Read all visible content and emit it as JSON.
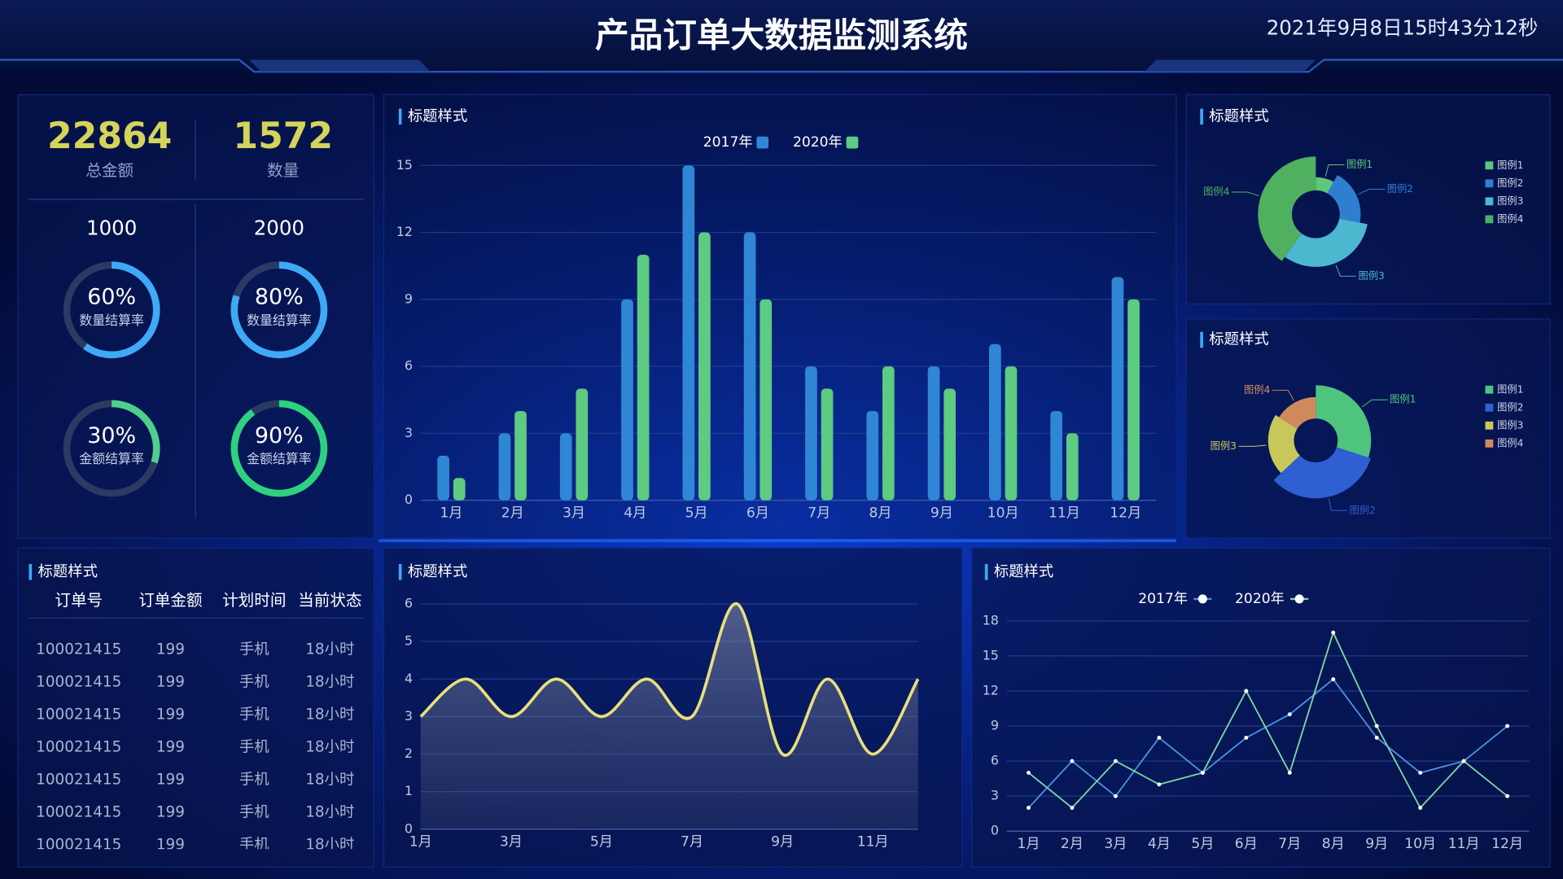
{
  "header": {
    "title": "产品订单大数据监测系统",
    "time": "2021年9月8日15时43分12秒"
  },
  "stats": [
    {
      "value": 22864,
      "label": "总金额"
    },
    {
      "value": 1572,
      "label": "数量"
    }
  ],
  "targets": [
    1000,
    2000
  ],
  "rings": {
    "range": [
      0,
      100
    ],
    "items": [
      {
        "value": 60,
        "value_label": "60%",
        "label": "数量结算率",
        "color": "#3fa9f5"
      },
      {
        "value": 80,
        "value_label": "80%",
        "label": "数量结算率",
        "color": "#3fa9f5"
      },
      {
        "value": 30,
        "value_label": "30%",
        "label": "金额结算率",
        "color": "#4fcf8c"
      },
      {
        "value": 90,
        "value_label": "90%",
        "label": "金额结算率",
        "color": "#2ed17f"
      }
    ]
  },
  "table": {
    "title": "标题样式",
    "columns": [
      "订单号",
      "订单金额",
      "计划时间",
      "当前状态"
    ],
    "rows": [
      [
        100021415,
        199,
        "手机",
        "18小时"
      ],
      [
        100021415,
        199,
        "手机",
        "18小时"
      ],
      [
        100021415,
        199,
        "手机",
        "18小时"
      ],
      [
        100021415,
        199,
        "手机",
        "18小时"
      ],
      [
        100021415,
        199,
        "手机",
        "18小时"
      ],
      [
        100021415,
        199,
        "手机",
        "18小时"
      ],
      [
        100021415,
        199,
        "手机",
        "18小时"
      ]
    ]
  },
  "chart_data": [
    {
      "type": "bar",
      "title": "标题样式",
      "categories": [
        "1月",
        "2月",
        "3月",
        "4月",
        "5月",
        "6月",
        "7月",
        "8月",
        "9月",
        "10月",
        "11月",
        "12月"
      ],
      "series": [
        {
          "name": "2017年",
          "color": "#2f86d4",
          "values": [
            2,
            3,
            3,
            9,
            15,
            12,
            6,
            4,
            6,
            7,
            4,
            10
          ]
        },
        {
          "name": "2020年",
          "color": "#5dcb80",
          "values": [
            1,
            4,
            5,
            11,
            12,
            9,
            5,
            6,
            5,
            6,
            3,
            9
          ]
        }
      ],
      "ylim": [
        0,
        15
      ],
      "yticks": [
        0,
        3,
        6,
        9,
        12,
        15
      ],
      "grid": true
    },
    {
      "type": "pie",
      "title": "标题样式",
      "rose": true,
      "categories": [
        "图例1",
        "图例2",
        "图例3",
        "图例4"
      ],
      "values": [
        8,
        20,
        32,
        40
      ],
      "colors": [
        "#5cc87a",
        "#2f7fd1",
        "#4cb8d0",
        "#4fb060"
      ]
    },
    {
      "type": "pie",
      "title": "标题样式",
      "rose": true,
      "categories": [
        "图例1",
        "图例2",
        "图例3",
        "图例4"
      ],
      "values": [
        30,
        33,
        21,
        16
      ],
      "colors": [
        "#4fc47e",
        "#2f5fd0",
        "#c8c75a",
        "#d08a5a"
      ]
    },
    {
      "type": "line",
      "title": "标题样式",
      "smooth": true,
      "area": true,
      "categories": [
        "1月",
        null,
        "3月",
        null,
        "5月",
        null,
        "7月",
        null,
        "9月",
        null,
        "11月",
        null
      ],
      "values": [
        3,
        4,
        3,
        4,
        3,
        4,
        3,
        6,
        2,
        4,
        2,
        4
      ],
      "color": "#e8df7a",
      "ylim": [
        0,
        6
      ],
      "yticks": [
        0,
        1,
        2,
        3,
        4,
        5,
        6
      ],
      "grid": true
    },
    {
      "type": "line",
      "title": "标题样式",
      "markers": true,
      "categories": [
        "1月",
        "2月",
        "3月",
        "4月",
        "5月",
        "6月",
        "7月",
        "8月",
        "9月",
        "10月",
        "11月",
        "12月"
      ],
      "series": [
        {
          "name": "2017年",
          "color": "#4a90e0",
          "values": [
            2,
            6,
            3,
            8,
            5,
            8,
            10,
            13,
            8,
            5,
            6,
            9
          ]
        },
        {
          "name": "2020年",
          "color": "#7ed6a0",
          "values": [
            5,
            2,
            6,
            4,
            5,
            12,
            5,
            17,
            9,
            2,
            6,
            3
          ]
        }
      ],
      "ylim": [
        0,
        18
      ],
      "yticks": [
        0,
        3,
        6,
        9,
        12,
        15,
        18
      ],
      "grid": true
    }
  ]
}
